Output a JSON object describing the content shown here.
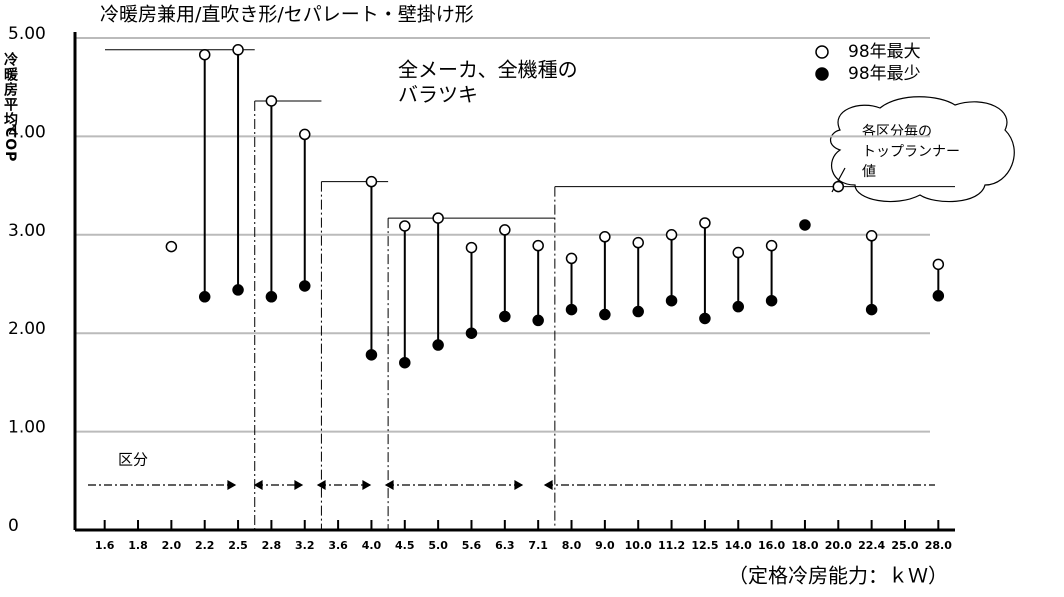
{
  "chart_data": {
    "type": "range-dot",
    "title": "冷暖房兼用/直吹き形/セパレート・壁掛け形",
    "y_label": "冷暖房平均COP",
    "x_label": "（定格冷房能力：ｋＷ）",
    "annotation": [
      "全メーカ、全機種の",
      "バラツキ"
    ],
    "callout": [
      "各区分毎の",
      "トップランナー",
      "値"
    ],
    "class_label": "区分",
    "categories": [
      "1.6",
      "1.8",
      "2.0",
      "2.2",
      "2.5",
      "2.8",
      "3.2",
      "3.6",
      "4.0",
      "4.5",
      "5.0",
      "5.6",
      "6.3",
      "7.1",
      "8.0",
      "9.0",
      "10.0",
      "11.2",
      "12.5",
      "14.0",
      "16.0",
      "18.0",
      "20.0",
      "22.4",
      "25.0",
      "28.0"
    ],
    "series": [
      {
        "name": "98年最大",
        "color": "#ffffff",
        "values": [
          null,
          null,
          2.88,
          4.83,
          4.88,
          4.36,
          4.02,
          null,
          3.54,
          3.09,
          3.17,
          2.87,
          3.05,
          2.89,
          2.76,
          2.98,
          2.92,
          3.0,
          3.12,
          2.82,
          2.89,
          null,
          3.49,
          2.99,
          null,
          2.7
        ]
      },
      {
        "name": "98年最少",
        "color": "#000000",
        "values": [
          null,
          null,
          null,
          2.37,
          2.44,
          2.37,
          2.48,
          null,
          1.78,
          1.7,
          1.88,
          2.0,
          2.17,
          2.13,
          2.24,
          2.19,
          2.22,
          2.33,
          2.15,
          2.27,
          2.33,
          3.1,
          null,
          2.24,
          null,
          2.38
        ]
      }
    ],
    "ylim": [
      0,
      5
    ],
    "yticks": [
      0,
      {
        "value": 1,
        "label": "1.00"
      },
      {
        "value": 2,
        "label": "2.00"
      },
      {
        "value": 3,
        "label": "3.00"
      },
      {
        "value": 4,
        "label": "4.00"
      },
      {
        "value": 5,
        "label": "5.00"
      }
    ],
    "grid": true
  }
}
